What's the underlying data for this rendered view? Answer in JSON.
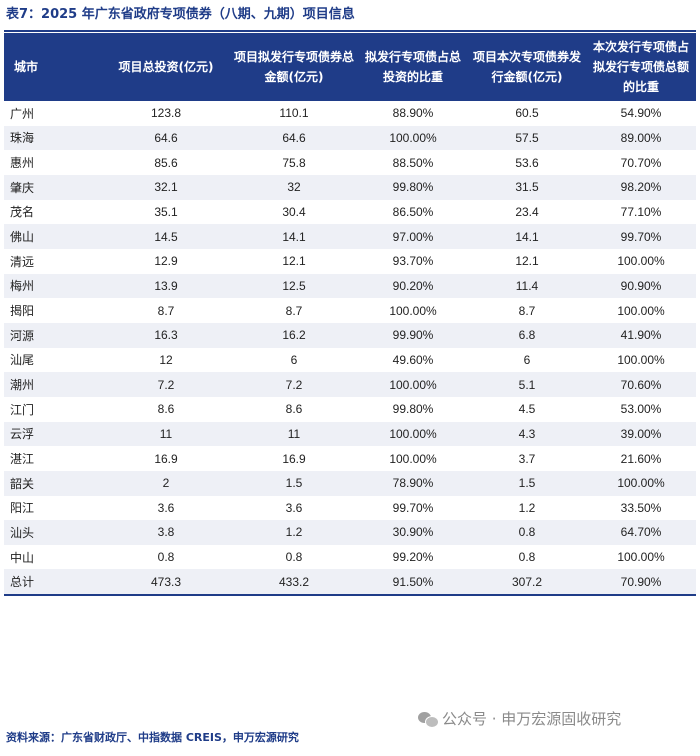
{
  "title": "表7：2025 年广东省政府专项债券（八期、九期）项目信息",
  "headers": [
    "城市",
    "项目总投资(亿元)",
    "项目拟发行专项债券总金额(亿元)",
    "拟发行专项债占总投资的比重",
    "项目本次专项债券发行金额(亿元)",
    "本次发行专项债占拟发行专项债总额的比重"
  ],
  "rows": [
    {
      "city": "广州",
      "c1": "123.8",
      "c2": "110.1",
      "c3": "88.90%",
      "c4": "60.5",
      "c5": "54.90%"
    },
    {
      "city": "珠海",
      "c1": "64.6",
      "c2": "64.6",
      "c3": "100.00%",
      "c4": "57.5",
      "c5": "89.00%"
    },
    {
      "city": "惠州",
      "c1": "85.6",
      "c2": "75.8",
      "c3": "88.50%",
      "c4": "53.6",
      "c5": "70.70%"
    },
    {
      "city": "肇庆",
      "c1": "32.1",
      "c2": "32",
      "c3": "99.80%",
      "c4": "31.5",
      "c5": "98.20%"
    },
    {
      "city": "茂名",
      "c1": "35.1",
      "c2": "30.4",
      "c3": "86.50%",
      "c4": "23.4",
      "c5": "77.10%"
    },
    {
      "city": "佛山",
      "c1": "14.5",
      "c2": "14.1",
      "c3": "97.00%",
      "c4": "14.1",
      "c5": "99.70%"
    },
    {
      "city": "清远",
      "c1": "12.9",
      "c2": "12.1",
      "c3": "93.70%",
      "c4": "12.1",
      "c5": "100.00%"
    },
    {
      "city": "梅州",
      "c1": "13.9",
      "c2": "12.5",
      "c3": "90.20%",
      "c4": "11.4",
      "c5": "90.90%"
    },
    {
      "city": "揭阳",
      "c1": "8.7",
      "c2": "8.7",
      "c3": "100.00%",
      "c4": "8.7",
      "c5": "100.00%"
    },
    {
      "city": "河源",
      "c1": "16.3",
      "c2": "16.2",
      "c3": "99.90%",
      "c4": "6.8",
      "c5": "41.90%"
    },
    {
      "city": "汕尾",
      "c1": "12",
      "c2": "6",
      "c3": "49.60%",
      "c4": "6",
      "c5": "100.00%"
    },
    {
      "city": "潮州",
      "c1": "7.2",
      "c2": "7.2",
      "c3": "100.00%",
      "c4": "5.1",
      "c5": "70.60%"
    },
    {
      "city": "江门",
      "c1": "8.6",
      "c2": "8.6",
      "c3": "99.80%",
      "c4": "4.5",
      "c5": "53.00%"
    },
    {
      "city": "云浮",
      "c1": "11",
      "c2": "11",
      "c3": "100.00%",
      "c4": "4.3",
      "c5": "39.00%"
    },
    {
      "city": "湛江",
      "c1": "16.9",
      "c2": "16.9",
      "c3": "100.00%",
      "c4": "3.7",
      "c5": "21.60%"
    },
    {
      "city": "韶关",
      "c1": "2",
      "c2": "1.5",
      "c3": "78.90%",
      "c4": "1.5",
      "c5": "100.00%"
    },
    {
      "city": "阳江",
      "c1": "3.6",
      "c2": "3.6",
      "c3": "99.70%",
      "c4": "1.2",
      "c5": "33.50%"
    },
    {
      "city": "汕头",
      "c1": "3.8",
      "c2": "1.2",
      "c3": "30.90%",
      "c4": "0.8",
      "c5": "64.70%"
    },
    {
      "city": "中山",
      "c1": "0.8",
      "c2": "0.8",
      "c3": "99.20%",
      "c4": "0.8",
      "c5": "100.00%"
    },
    {
      "city": "总计",
      "c1": "473.3",
      "c2": "433.2",
      "c3": "91.50%",
      "c4": "307.2",
      "c5": "70.90%"
    }
  ],
  "source": "资料来源：广东省财政厅、中指数据 CREIS，申万宏源研究",
  "watermark": "公众号 · 申万宏源固收研究",
  "colors": {
    "header_bg": "#1f3c88",
    "stripe": "#eef0f6",
    "title": "#1f3c88"
  }
}
